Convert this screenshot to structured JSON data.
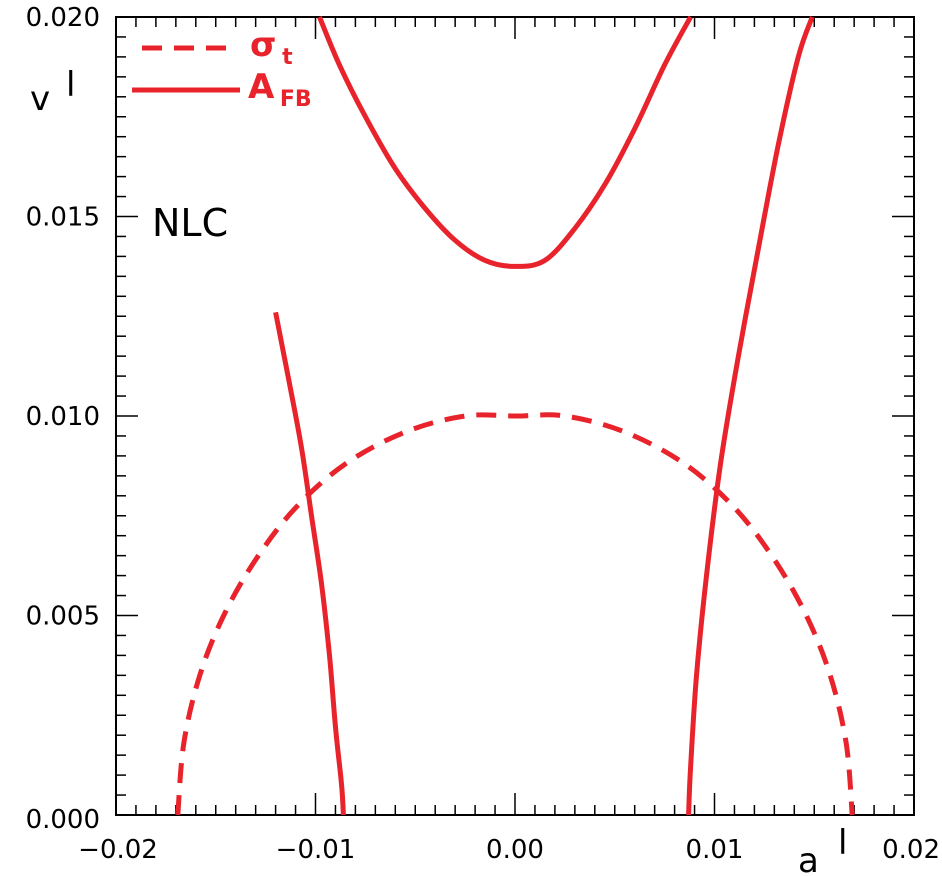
{
  "chart_data": {
    "type": "line",
    "title": "",
    "xlabel": "a",
    "xlabel_superscript": "l",
    "ylabel": "v",
    "ylabel_superscript": "l",
    "xlim": [
      -0.02,
      0.02
    ],
    "ylim": [
      0.0,
      0.02
    ],
    "x_ticks": [
      {
        "value": -0.02,
        "label": "−0.02"
      },
      {
        "value": -0.01,
        "label": "−0.01"
      },
      {
        "value": 0.0,
        "label": "0.00"
      },
      {
        "value": 0.01,
        "label": "0.01"
      },
      {
        "value": 0.02,
        "label": "0.02"
      }
    ],
    "y_ticks": [
      {
        "value": 0.0,
        "label": "0.000"
      },
      {
        "value": 0.005,
        "label": "0.005"
      },
      {
        "value": 0.01,
        "label": "0.010"
      },
      {
        "value": 0.015,
        "label": "0.015"
      },
      {
        "value": 0.02,
        "label": "0.020"
      }
    ],
    "grid": false,
    "legend_position": "top-left",
    "annotation": "NLC",
    "color": "#e8232b",
    "series": [
      {
        "id": "sigma_t",
        "name_main": "σ",
        "name_sub": "t",
        "style": "dashed",
        "points": [
          [
            -0.0169,
            0.0
          ],
          [
            -0.0166,
            0.0018
          ],
          [
            -0.0158,
            0.0035
          ],
          [
            -0.0146,
            0.005
          ],
          [
            -0.013,
            0.0064
          ],
          [
            -0.011,
            0.0077
          ],
          [
            -0.0085,
            0.0088
          ],
          [
            -0.0055,
            0.0096
          ],
          [
            -0.0025,
            0.01
          ],
          [
            0.0,
            0.01
          ],
          [
            0.0025,
            0.01
          ],
          [
            0.0055,
            0.0096
          ],
          [
            0.0085,
            0.0088
          ],
          [
            0.011,
            0.0077
          ],
          [
            0.013,
            0.0064
          ],
          [
            0.0146,
            0.005
          ],
          [
            0.0158,
            0.0035
          ],
          [
            0.0166,
            0.0018
          ],
          [
            0.0169,
            0.0
          ]
        ]
      },
      {
        "id": "afb_upper",
        "name_main": "A",
        "name_sub": "FB",
        "style": "solid",
        "points": [
          [
            -0.0098,
            0.02
          ],
          [
            -0.0088,
            0.0188
          ],
          [
            -0.0075,
            0.0175
          ],
          [
            -0.006,
            0.0162
          ],
          [
            -0.0045,
            0.0152
          ],
          [
            -0.003,
            0.0144
          ],
          [
            -0.0015,
            0.0139
          ],
          [
            0.0,
            0.01375
          ],
          [
            0.0015,
            0.0139
          ],
          [
            0.003,
            0.0147
          ],
          [
            0.0045,
            0.0158
          ],
          [
            0.006,
            0.0172
          ],
          [
            0.0075,
            0.0188
          ],
          [
            0.0088,
            0.02
          ]
        ]
      },
      {
        "id": "afb_left",
        "name_main": "A",
        "name_sub": "FB",
        "style": "solid",
        "points": [
          [
            -0.012,
            0.0126
          ],
          [
            -0.0113,
            0.0108
          ],
          [
            -0.0107,
            0.0092
          ],
          [
            -0.0102,
            0.0075
          ],
          [
            -0.0097,
            0.0058
          ],
          [
            -0.0093,
            0.004
          ],
          [
            -0.009,
            0.0022
          ],
          [
            -0.0087,
            0.0008
          ],
          [
            -0.0086,
            0.0
          ]
        ]
      },
      {
        "id": "afb_right",
        "name_main": "A",
        "name_sub": "FB",
        "style": "solid",
        "points": [
          [
            0.0087,
            0.0
          ],
          [
            0.0088,
            0.0012
          ],
          [
            0.0091,
            0.0035
          ],
          [
            0.0096,
            0.006
          ],
          [
            0.0103,
            0.0088
          ],
          [
            0.0112,
            0.0115
          ],
          [
            0.0122,
            0.0142
          ],
          [
            0.0132,
            0.0168
          ],
          [
            0.0142,
            0.019
          ],
          [
            0.0149,
            0.02
          ]
        ]
      }
    ]
  }
}
